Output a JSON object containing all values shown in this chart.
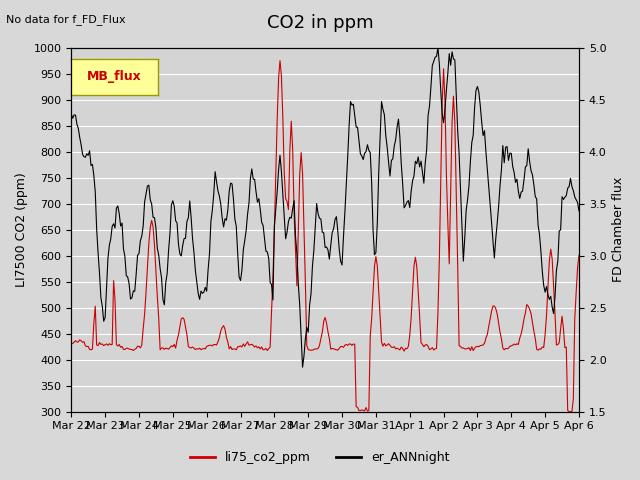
{
  "title": "CO2 in ppm",
  "top_left_text": "No data for f_FD_Flux",
  "ylabel_left": "LI7500 CO2 (ppm)",
  "ylabel_right": "FD Chamber flux",
  "ylim_left": [
    300,
    1000
  ],
  "ylim_right": [
    1.5,
    5.0
  ],
  "yticks_left": [
    300,
    350,
    400,
    450,
    500,
    550,
    600,
    650,
    700,
    750,
    800,
    850,
    900,
    950,
    1000
  ],
  "yticks_right": [
    1.5,
    2.0,
    2.5,
    3.0,
    3.5,
    4.0,
    4.5,
    5.0
  ],
  "xtick_labels": [
    "Mar 22",
    "Mar 23",
    "Mar 24",
    "Mar 25",
    "Mar 26",
    "Mar 27",
    "Mar 28",
    "Mar 29",
    "Mar 30",
    "Mar 31",
    "Apr 1",
    "Apr 2",
    "Apr 3",
    "Apr 4",
    "Apr 5",
    "Apr 6"
  ],
  "line1_color": "#cc0000",
  "line2_color": "#000000",
  "line1_label": "li75_co2_ppm",
  "line2_label": "er_ANNnight",
  "plot_bg_color": "#d4d4d4",
  "fig_bg_color": "#d8d8d8",
  "mb_flux_box_color": "#ffff99",
  "mb_flux_text_color": "#cc0000",
  "grid_color": "#ffffff",
  "title_fontsize": 13,
  "label_fontsize": 9,
  "tick_fontsize": 8
}
